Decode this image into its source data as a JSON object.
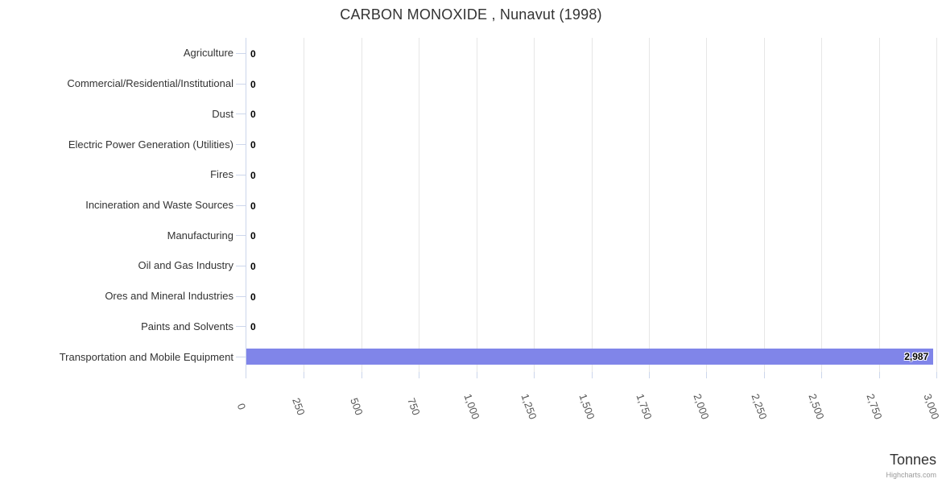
{
  "credit": "Highcharts.com",
  "chart_data": {
    "type": "bar",
    "orientation": "horizontal",
    "title": "CARBON MONOXIDE , Nunavut (1998)",
    "categories": [
      "Agriculture",
      "Commercial/Residential/Institutional",
      "Dust",
      "Electric Power Generation (Utilities)",
      "Fires",
      "Incineration and Waste Sources",
      "Manufacturing",
      "Oil and Gas Industry",
      "Ores and Mineral Industries",
      "Paints and Solvents",
      "Transportation and Mobile Equipment"
    ],
    "values": [
      0,
      0,
      0,
      0,
      0,
      0,
      0,
      0,
      0,
      0,
      2987
    ],
    "data_labels": [
      "0",
      "0",
      "0",
      "0",
      "0",
      "0",
      "0",
      "0",
      "0",
      "0",
      "2,987"
    ],
    "xlabel": "Tonnes",
    "ylabel": "",
    "xlim": [
      0,
      3000
    ],
    "tick_interval": 250,
    "tick_labels": [
      "0",
      "250",
      "500",
      "750",
      "1,000",
      "1,250",
      "1,500",
      "1,750",
      "2,000",
      "2,250",
      "2,500",
      "2,750",
      "3,000"
    ],
    "grid": true,
    "legend": "none",
    "colors": {
      "bar": "#8085e9",
      "axis_line": "#ccd6eb",
      "gridline": "#e6e6e6",
      "tick_mark": "#ccd6eb",
      "title_text": "#333333",
      "category_label": "#333333",
      "tick_label": "#555555",
      "data_label": "#000000",
      "axis_title": "#333333",
      "credit": "#999999"
    }
  }
}
